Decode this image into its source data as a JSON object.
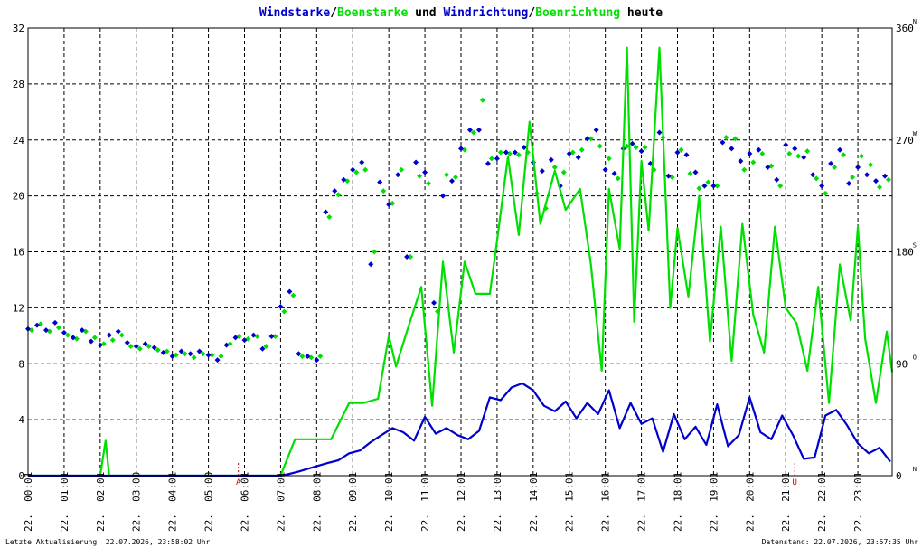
{
  "title": {
    "parts": [
      {
        "text": "Windstarke",
        "color": "#0000cc"
      },
      {
        "text": "/",
        "color": "#000000"
      },
      {
        "text": "Boenstarke",
        "color": "#00e000"
      },
      {
        "text": " und ",
        "color": "#000000"
      },
      {
        "text": "Windrichtung",
        "color": "#0000cc"
      },
      {
        "text": "/",
        "color": "#000000"
      },
      {
        "text": "Boenrichtung",
        "color": "#00e000"
      },
      {
        "text": " heute",
        "color": "#000000"
      }
    ]
  },
  "footer": {
    "left": "Letzte Aktualisierung: 22.07.2026, 23:58:02 Uhr",
    "right": "Datenstand: 22.07.2026, 23:57:35 Uhr"
  },
  "markers": [
    {
      "label": "A",
      "hour": 5.83
    },
    {
      "label": "U",
      "hour": 21.25
    }
  ],
  "chart_data": {
    "type": "line",
    "date_prefix": "22.",
    "x_ticks": [
      "00:01",
      "01:01",
      "02:01",
      "03:00",
      "04:01",
      "05:00",
      "06:01",
      "07:01",
      "08:01",
      "09:01",
      "10:01",
      "11:01",
      "12:01",
      "13:01",
      "14:01",
      "15:01",
      "16:01",
      "17:01",
      "18:01",
      "19:01",
      "20:01",
      "21:01",
      "22:01",
      "23:01"
    ],
    "xlim_hours": [
      0,
      23.95
    ],
    "y_left": {
      "ticks": [
        0,
        4,
        8,
        12,
        16,
        20,
        24,
        28,
        32
      ],
      "lim": [
        0,
        32
      ]
    },
    "y_right": {
      "ticks": [
        0,
        90,
        180,
        270,
        360
      ],
      "lim": [
        0,
        360
      ],
      "compass": [
        "N",
        "O",
        "S",
        "W",
        "N"
      ]
    },
    "grid": true,
    "colors": {
      "wind": "#0000cc",
      "gust": "#00e000",
      "grid": "#000000",
      "marker": "#cc0000"
    },
    "series": [
      {
        "name": "Windstarke",
        "kind": "line",
        "axis": "left",
        "x": [
          0,
          1,
          2,
          3,
          4,
          5,
          6,
          7,
          7.2,
          7.5,
          7.9,
          8.3,
          8.6,
          8.9,
          9.2,
          9.5,
          9.8,
          10.1,
          10.4,
          10.7,
          11,
          11.3,
          11.6,
          11.9,
          12.2,
          12.5,
          12.8,
          13.1,
          13.4,
          13.7,
          14,
          14.3,
          14.6,
          14.9,
          15.2,
          15.5,
          15.8,
          16.1,
          16.4,
          16.7,
          17,
          17.3,
          17.6,
          17.9,
          18.2,
          18.5,
          18.8,
          19.1,
          19.4,
          19.7,
          20,
          20.3,
          20.6,
          20.9,
          21.2,
          21.5,
          21.8,
          22.1,
          22.4,
          22.7,
          23,
          23.3,
          23.6,
          23.9
        ],
        "y": [
          0,
          0,
          0,
          0,
          0,
          0,
          0,
          0,
          0.1,
          0.3,
          0.6,
          0.9,
          1.1,
          1.6,
          1.8,
          2.4,
          2.9,
          3.4,
          3.1,
          2.5,
          4.2,
          3.0,
          3.4,
          2.9,
          2.6,
          3.2,
          5.6,
          5.4,
          6.3,
          6.6,
          6.1,
          5.0,
          4.6,
          5.3,
          4.1,
          5.2,
          4.4,
          6.1,
          3.4,
          5.2,
          3.7,
          4.1,
          1.7,
          4.4,
          2.6,
          3.5,
          2.2,
          5.1,
          2.1,
          2.9,
          5.6,
          3.1,
          2.6,
          4.3,
          2.9,
          1.2,
          1.3,
          4.3,
          4.7,
          3.6,
          2.3,
          1.6,
          2.0,
          1.0
        ]
      },
      {
        "name": "Boenstarke",
        "kind": "line",
        "axis": "left",
        "x": [
          0,
          1,
          2,
          2.15,
          2.25,
          2.35,
          3,
          4,
          5,
          6,
          7,
          7.4,
          7.6,
          8.0,
          8.4,
          8.9,
          9.1,
          9.3,
          9.7,
          10.0,
          10.2,
          10.5,
          10.9,
          11.2,
          11.5,
          11.8,
          12.1,
          12.4,
          12.8,
          13.0,
          13.3,
          13.6,
          13.9,
          14.2,
          14.6,
          14.9,
          15.3,
          15.6,
          15.9,
          16.1,
          16.4,
          16.6,
          16.8,
          17.0,
          17.2,
          17.5,
          17.8,
          18.0,
          18.3,
          18.6,
          18.9,
          19.2,
          19.5,
          19.8,
          20.1,
          20.4,
          20.7,
          21.0,
          21.3,
          21.6,
          21.9,
          22.2,
          22.5,
          22.8,
          23.0,
          23.2,
          23.5,
          23.8,
          23.95
        ],
        "y": [
          0,
          0,
          0,
          2.5,
          0,
          0,
          0,
          0,
          0,
          0,
          0,
          2.6,
          2.6,
          2.6,
          2.6,
          5.2,
          5.2,
          5.2,
          5.5,
          10.0,
          7.8,
          10.3,
          13.5,
          5.0,
          15.3,
          8.8,
          15.3,
          13.0,
          13.0,
          16.8,
          22.8,
          17.2,
          25.3,
          18.0,
          21.8,
          19.0,
          20.5,
          15.1,
          7.5,
          20.5,
          16.2,
          30.6,
          11.0,
          22.5,
          17.5,
          30.6,
          12.0,
          17.7,
          12.8,
          20.0,
          9.6,
          17.8,
          8.2,
          18.0,
          11.5,
          8.8,
          17.8,
          12.0,
          10.9,
          7.5,
          13.5,
          5.2,
          15.1,
          11.1,
          17.8,
          9.8,
          5.2,
          10.3,
          7.4
        ]
      },
      {
        "name": "Windrichtung",
        "kind": "scatter",
        "axis": "right",
        "x": [
          0.0,
          0.25,
          0.5,
          0.75,
          1.0,
          1.25,
          1.5,
          1.75,
          2.0,
          2.25,
          2.5,
          2.75,
          3.0,
          3.25,
          3.5,
          3.75,
          4.0,
          4.25,
          4.5,
          4.75,
          5.0,
          5.25,
          5.5,
          5.75,
          6.0,
          6.25,
          6.5,
          6.75,
          7.0,
          7.25,
          7.5,
          7.75,
          8.0,
          8.25,
          8.5,
          8.75,
          9.0,
          9.25,
          9.5,
          9.75,
          10.0,
          10.25,
          10.5,
          10.75,
          11.0,
          11.25,
          11.5,
          11.75,
          12.0,
          12.25,
          12.5,
          12.75,
          13.0,
          13.25,
          13.5,
          13.75,
          14.0,
          14.25,
          14.5,
          14.75,
          15.0,
          15.25,
          15.5,
          15.75,
          16.0,
          16.25,
          16.5,
          16.75,
          17.0,
          17.25,
          17.5,
          17.75,
          18.0,
          18.25,
          18.5,
          18.75,
          19.0,
          19.25,
          19.5,
          19.75,
          20.0,
          20.25,
          20.5,
          20.75,
          21.0,
          21.25,
          21.5,
          21.75,
          22.0,
          22.25,
          22.5,
          22.75,
          23.0,
          23.25,
          23.5,
          23.75
        ],
        "y": [
          118,
          121,
          117,
          123,
          115,
          111,
          117,
          108,
          105,
          113,
          116,
          107,
          104,
          106,
          103,
          99,
          96,
          100,
          98,
          100,
          97,
          93,
          105,
          111,
          109,
          113,
          102,
          112,
          136,
          148,
          98,
          96,
          93,
          212,
          229,
          238,
          246,
          252,
          170,
          236,
          218,
          242,
          176,
          252,
          244,
          139,
          225,
          237,
          263,
          278,
          278,
          251,
          255,
          260,
          260,
          264,
          252,
          245,
          254,
          233,
          259,
          256,
          271,
          278,
          246,
          243,
          263,
          267,
          261,
          251,
          276,
          241,
          260,
          258,
          244,
          233,
          233,
          268,
          263,
          253,
          259,
          262,
          248,
          238,
          266,
          263,
          256,
          242,
          233,
          251,
          262,
          235,
          248,
          242,
          237,
          241
        ]
      },
      {
        "name": "Boenrichtung",
        "kind": "scatter",
        "axis": "right",
        "x": [
          0.1,
          0.35,
          0.6,
          0.85,
          1.1,
          1.35,
          1.6,
          1.85,
          2.1,
          2.35,
          2.6,
          2.85,
          3.1,
          3.35,
          3.6,
          3.85,
          4.1,
          4.35,
          4.6,
          4.85,
          5.1,
          5.35,
          5.6,
          5.85,
          6.1,
          6.35,
          6.6,
          6.85,
          7.1,
          7.35,
          7.6,
          7.85,
          8.1,
          8.35,
          8.6,
          8.85,
          9.1,
          9.35,
          9.6,
          9.85,
          10.1,
          10.35,
          10.6,
          10.85,
          11.1,
          11.35,
          11.6,
          11.85,
          12.1,
          12.35,
          12.6,
          12.85,
          13.1,
          13.35,
          13.6,
          13.85,
          14.1,
          14.35,
          14.6,
          14.85,
          15.1,
          15.35,
          15.6,
          15.85,
          16.1,
          16.35,
          16.6,
          16.85,
          17.1,
          17.35,
          17.6,
          17.85,
          18.1,
          18.35,
          18.6,
          18.85,
          19.1,
          19.35,
          19.6,
          19.85,
          20.1,
          20.35,
          20.6,
          20.85,
          21.1,
          21.35,
          21.6,
          21.85,
          22.1,
          22.35,
          22.6,
          22.85,
          23.1,
          23.35,
          23.6,
          23.85
        ],
        "y": [
          117,
          122,
          116,
          119,
          113,
          110,
          116,
          111,
          106,
          109,
          113,
          104,
          102,
          104,
          101,
          100,
          97,
          98,
          95,
          98,
          97,
          96,
          106,
          112,
          110,
          112,
          104,
          112,
          132,
          145,
          96,
          95,
          96,
          208,
          226,
          237,
          244,
          246,
          180,
          229,
          219,
          246,
          176,
          241,
          235,
          132,
          242,
          240,
          262,
          276,
          302,
          255,
          260,
          259,
          258,
          260,
          227,
          215,
          248,
          244,
          260,
          262,
          271,
          265,
          255,
          239,
          265,
          264,
          264,
          246,
          272,
          240,
          262,
          243,
          231,
          236,
          233,
          272,
          271,
          246,
          252,
          259,
          249,
          233,
          259,
          257,
          261,
          239,
          227,
          248,
          258,
          240,
          257,
          250,
          232,
          238
        ]
      }
    ]
  }
}
